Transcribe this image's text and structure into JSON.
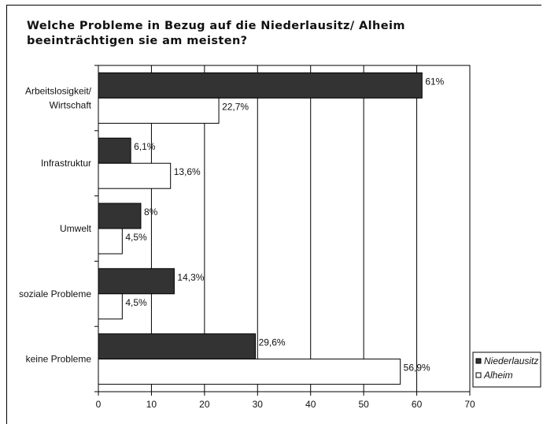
{
  "chart_data": {
    "type": "bar",
    "orientation": "horizontal",
    "title": "Welche Probleme in Bezug auf die Niederlausitz/ Alheim\nbeeinträchtigen sie am meisten?",
    "categories": [
      "Arbeitslosigkeit/\nWirtschaft",
      "Infrastruktur",
      "Umwelt",
      "soziale Probleme",
      "keine Probleme"
    ],
    "series": [
      {
        "name": "Niederlausitz",
        "values": [
          61,
          6.1,
          8,
          14.3,
          29.6
        ],
        "labels": [
          "61%",
          "6,1%",
          "8%",
          "14,3%",
          "29,6%"
        ],
        "color": "#333333"
      },
      {
        "name": "Alheim",
        "values": [
          22.7,
          13.6,
          4.5,
          4.5,
          56.9
        ],
        "labels": [
          "22,7%",
          "13,6%",
          "4,5%",
          "4,5%",
          "56,9%"
        ],
        "color": "#ffffff"
      }
    ],
    "xlim": [
      0,
      70
    ],
    "xticks": [
      0,
      10,
      20,
      30,
      40,
      50,
      60,
      70
    ],
    "grid": true,
    "legend": "right"
  }
}
